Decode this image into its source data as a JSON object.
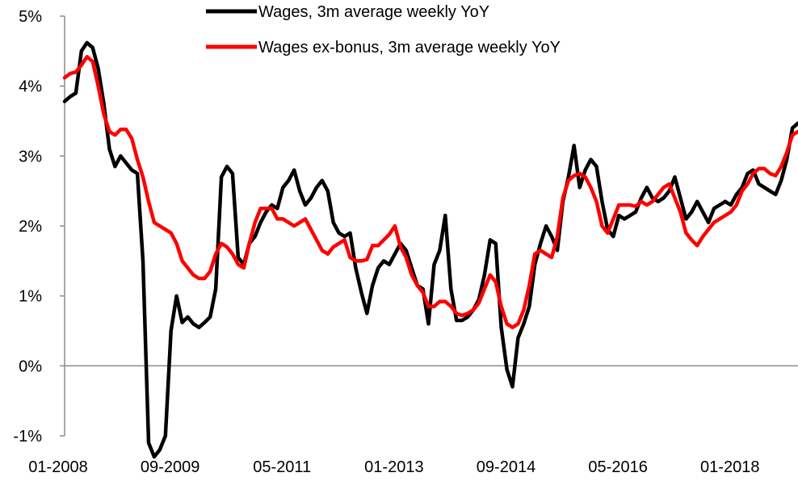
{
  "chart_data": {
    "type": "line",
    "title": "",
    "xlabel": "",
    "ylabel": "",
    "ylim": [
      -1,
      5
    ],
    "y_tick_labels": [
      "-1%",
      "0%",
      "1%",
      "2%",
      "3%",
      "4%",
      "5%"
    ],
    "y_tick_values": [
      -1,
      0,
      1,
      2,
      3,
      4,
      5
    ],
    "x_tick_labels": [
      "01-2008",
      "09-2009",
      "05-2011",
      "01-2013",
      "09-2014",
      "05-2016",
      "01-2018"
    ],
    "x_tick_dates": [
      "2008-01",
      "2009-09",
      "2011-05",
      "2013-01",
      "2014-09",
      "2016-05",
      "2018-01"
    ],
    "x_range": [
      "2008-01",
      "2018-12"
    ],
    "grid": false,
    "legend_position": "top",
    "series": [
      {
        "name": "Wages, 3m average weekly YoY",
        "color": "#000000",
        "points": [
          [
            "2008-01",
            3.78
          ],
          [
            "2008-02",
            3.85
          ],
          [
            "2008-03",
            3.9
          ],
          [
            "2008-04",
            4.5
          ],
          [
            "2008-05",
            4.62
          ],
          [
            "2008-06",
            4.55
          ],
          [
            "2008-07",
            4.25
          ],
          [
            "2008-08",
            3.75
          ],
          [
            "2008-09",
            3.1
          ],
          [
            "2008-10",
            2.85
          ],
          [
            "2008-11",
            3.0
          ],
          [
            "2008-12",
            2.9
          ],
          [
            "2009-01",
            2.8
          ],
          [
            "2009-02",
            2.75
          ],
          [
            "2009-03",
            1.5
          ],
          [
            "2009-04",
            -1.1
          ],
          [
            "2009-05",
            -1.3
          ],
          [
            "2009-06",
            -1.2
          ],
          [
            "2009-07",
            -1.0
          ],
          [
            "2009-08",
            0.5
          ],
          [
            "2009-09",
            1.0
          ],
          [
            "2009-10",
            0.62
          ],
          [
            "2009-11",
            0.7
          ],
          [
            "2009-12",
            0.6
          ],
          [
            "2010-01",
            0.55
          ],
          [
            "2010-02",
            0.62
          ],
          [
            "2010-03",
            0.7
          ],
          [
            "2010-04",
            1.1
          ],
          [
            "2010-05",
            2.7
          ],
          [
            "2010-06",
            2.85
          ],
          [
            "2010-07",
            2.75
          ],
          [
            "2010-08",
            1.55
          ],
          [
            "2010-09",
            1.45
          ],
          [
            "2010-10",
            1.75
          ],
          [
            "2010-11",
            1.85
          ],
          [
            "2010-12",
            2.05
          ],
          [
            "2011-01",
            2.2
          ],
          [
            "2011-02",
            2.3
          ],
          [
            "2011-03",
            2.25
          ],
          [
            "2011-04",
            2.55
          ],
          [
            "2011-05",
            2.65
          ],
          [
            "2011-06",
            2.8
          ],
          [
            "2011-07",
            2.5
          ],
          [
            "2011-08",
            2.3
          ],
          [
            "2011-09",
            2.4
          ],
          [
            "2011-10",
            2.55
          ],
          [
            "2011-11",
            2.65
          ],
          [
            "2011-12",
            2.5
          ],
          [
            "2012-01",
            2.05
          ],
          [
            "2012-02",
            1.9
          ],
          [
            "2012-03",
            1.85
          ],
          [
            "2012-04",
            1.9
          ],
          [
            "2012-05",
            1.4
          ],
          [
            "2012-06",
            1.05
          ],
          [
            "2012-07",
            0.75
          ],
          [
            "2012-08",
            1.15
          ],
          [
            "2012-09",
            1.4
          ],
          [
            "2012-10",
            1.5
          ],
          [
            "2012-11",
            1.45
          ],
          [
            "2012-12",
            1.6
          ],
          [
            "2013-01",
            1.75
          ],
          [
            "2013-02",
            1.65
          ],
          [
            "2013-03",
            1.4
          ],
          [
            "2013-04",
            1.15
          ],
          [
            "2013-05",
            1.1
          ],
          [
            "2013-06",
            0.6
          ],
          [
            "2013-07",
            1.45
          ],
          [
            "2013-08",
            1.65
          ],
          [
            "2013-09",
            2.15
          ],
          [
            "2013-10",
            1.1
          ],
          [
            "2013-11",
            0.65
          ],
          [
            "2013-12",
            0.65
          ],
          [
            "2014-01",
            0.7
          ],
          [
            "2014-02",
            0.8
          ],
          [
            "2014-03",
            0.95
          ],
          [
            "2014-04",
            1.3
          ],
          [
            "2014-05",
            1.8
          ],
          [
            "2014-06",
            1.75
          ],
          [
            "2014-07",
            0.55
          ],
          [
            "2014-08",
            -0.05
          ],
          [
            "2014-09",
            -0.3
          ],
          [
            "2014-10",
            0.4
          ],
          [
            "2014-11",
            0.6
          ],
          [
            "2014-12",
            0.85
          ],
          [
            "2015-01",
            1.45
          ],
          [
            "2015-02",
            1.75
          ],
          [
            "2015-03",
            2.0
          ],
          [
            "2015-04",
            1.85
          ],
          [
            "2015-05",
            1.65
          ],
          [
            "2015-06",
            2.35
          ],
          [
            "2015-07",
            2.7
          ],
          [
            "2015-08",
            3.15
          ],
          [
            "2015-09",
            2.55
          ],
          [
            "2015-10",
            2.8
          ],
          [
            "2015-11",
            2.95
          ],
          [
            "2015-12",
            2.85
          ],
          [
            "2016-01",
            2.35
          ],
          [
            "2016-02",
            1.95
          ],
          [
            "2016-03",
            1.85
          ],
          [
            "2016-04",
            2.15
          ],
          [
            "2016-05",
            2.1
          ],
          [
            "2016-06",
            2.15
          ],
          [
            "2016-07",
            2.2
          ],
          [
            "2016-08",
            2.4
          ],
          [
            "2016-09",
            2.55
          ],
          [
            "2016-10",
            2.4
          ],
          [
            "2016-11",
            2.35
          ],
          [
            "2016-12",
            2.4
          ],
          [
            "2017-01",
            2.5
          ],
          [
            "2017-02",
            2.7
          ],
          [
            "2017-03",
            2.4
          ],
          [
            "2017-04",
            2.1
          ],
          [
            "2017-05",
            2.2
          ],
          [
            "2017-06",
            2.35
          ],
          [
            "2017-07",
            2.2
          ],
          [
            "2017-08",
            2.05
          ],
          [
            "2017-09",
            2.25
          ],
          [
            "2017-10",
            2.3
          ],
          [
            "2017-11",
            2.35
          ],
          [
            "2017-12",
            2.3
          ],
          [
            "2018-01",
            2.45
          ],
          [
            "2018-02",
            2.55
          ],
          [
            "2018-03",
            2.75
          ],
          [
            "2018-04",
            2.8
          ],
          [
            "2018-05",
            2.6
          ],
          [
            "2018-06",
            2.55
          ],
          [
            "2018-07",
            2.5
          ],
          [
            "2018-08",
            2.45
          ],
          [
            "2018-09",
            2.65
          ],
          [
            "2018-10",
            2.95
          ],
          [
            "2018-11",
            3.4
          ],
          [
            "2018-12",
            3.47
          ]
        ]
      },
      {
        "name": "Wages ex-bonus, 3m average weekly YoY",
        "color": "#ff0000",
        "points": [
          [
            "2008-01",
            4.12
          ],
          [
            "2008-02",
            4.18
          ],
          [
            "2008-03",
            4.2
          ],
          [
            "2008-04",
            4.3
          ],
          [
            "2008-05",
            4.42
          ],
          [
            "2008-06",
            4.35
          ],
          [
            "2008-07",
            4.0
          ],
          [
            "2008-08",
            3.6
          ],
          [
            "2008-09",
            3.35
          ],
          [
            "2008-10",
            3.3
          ],
          [
            "2008-11",
            3.38
          ],
          [
            "2008-12",
            3.38
          ],
          [
            "2009-01",
            3.25
          ],
          [
            "2009-02",
            2.95
          ],
          [
            "2009-03",
            2.7
          ],
          [
            "2009-04",
            2.35
          ],
          [
            "2009-05",
            2.05
          ],
          [
            "2009-06",
            2.0
          ],
          [
            "2009-07",
            1.95
          ],
          [
            "2009-08",
            1.9
          ],
          [
            "2009-09",
            1.75
          ],
          [
            "2009-10",
            1.5
          ],
          [
            "2009-11",
            1.4
          ],
          [
            "2009-12",
            1.3
          ],
          [
            "2010-01",
            1.25
          ],
          [
            "2010-02",
            1.25
          ],
          [
            "2010-03",
            1.35
          ],
          [
            "2010-04",
            1.6
          ],
          [
            "2010-05",
            1.75
          ],
          [
            "2010-06",
            1.7
          ],
          [
            "2010-07",
            1.6
          ],
          [
            "2010-08",
            1.45
          ],
          [
            "2010-09",
            1.4
          ],
          [
            "2010-10",
            1.75
          ],
          [
            "2010-11",
            2.05
          ],
          [
            "2010-12",
            2.25
          ],
          [
            "2011-01",
            2.25
          ],
          [
            "2011-02",
            2.25
          ],
          [
            "2011-03",
            2.1
          ],
          [
            "2011-04",
            2.1
          ],
          [
            "2011-05",
            2.05
          ],
          [
            "2011-06",
            2.0
          ],
          [
            "2011-07",
            2.05
          ],
          [
            "2011-08",
            2.1
          ],
          [
            "2011-09",
            1.95
          ],
          [
            "2011-10",
            1.8
          ],
          [
            "2011-11",
            1.65
          ],
          [
            "2011-12",
            1.6
          ],
          [
            "2012-01",
            1.7
          ],
          [
            "2012-02",
            1.75
          ],
          [
            "2012-03",
            1.8
          ],
          [
            "2012-04",
            1.55
          ],
          [
            "2012-05",
            1.5
          ],
          [
            "2012-06",
            1.5
          ],
          [
            "2012-07",
            1.52
          ],
          [
            "2012-08",
            1.72
          ],
          [
            "2012-09",
            1.72
          ],
          [
            "2012-10",
            1.8
          ],
          [
            "2012-11",
            1.88
          ],
          [
            "2012-12",
            2.0
          ],
          [
            "2013-01",
            1.7
          ],
          [
            "2013-02",
            1.55
          ],
          [
            "2013-03",
            1.3
          ],
          [
            "2013-04",
            1.15
          ],
          [
            "2013-05",
            1.05
          ],
          [
            "2013-06",
            0.85
          ],
          [
            "2013-07",
            0.85
          ],
          [
            "2013-08",
            0.92
          ],
          [
            "2013-09",
            0.92
          ],
          [
            "2013-10",
            0.85
          ],
          [
            "2013-11",
            0.75
          ],
          [
            "2013-12",
            0.72
          ],
          [
            "2014-01",
            0.75
          ],
          [
            "2014-02",
            0.8
          ],
          [
            "2014-03",
            0.9
          ],
          [
            "2014-04",
            1.1
          ],
          [
            "2014-05",
            1.3
          ],
          [
            "2014-06",
            1.2
          ],
          [
            "2014-07",
            0.85
          ],
          [
            "2014-08",
            0.6
          ],
          [
            "2014-09",
            0.55
          ],
          [
            "2014-10",
            0.6
          ],
          [
            "2014-11",
            0.8
          ],
          [
            "2014-12",
            1.15
          ],
          [
            "2015-01",
            1.6
          ],
          [
            "2015-02",
            1.65
          ],
          [
            "2015-03",
            1.6
          ],
          [
            "2015-04",
            1.55
          ],
          [
            "2015-05",
            1.85
          ],
          [
            "2015-06",
            2.4
          ],
          [
            "2015-07",
            2.65
          ],
          [
            "2015-08",
            2.72
          ],
          [
            "2015-09",
            2.75
          ],
          [
            "2015-10",
            2.7
          ],
          [
            "2015-11",
            2.55
          ],
          [
            "2015-12",
            2.35
          ],
          [
            "2016-01",
            2.0
          ],
          [
            "2016-02",
            1.9
          ],
          [
            "2016-03",
            2.1
          ],
          [
            "2016-04",
            2.3
          ],
          [
            "2016-05",
            2.3
          ],
          [
            "2016-06",
            2.3
          ],
          [
            "2016-07",
            2.28
          ],
          [
            "2016-08",
            2.35
          ],
          [
            "2016-09",
            2.3
          ],
          [
            "2016-10",
            2.35
          ],
          [
            "2016-11",
            2.45
          ],
          [
            "2016-12",
            2.55
          ],
          [
            "2017-01",
            2.6
          ],
          [
            "2017-02",
            2.4
          ],
          [
            "2017-03",
            2.2
          ],
          [
            "2017-04",
            1.9
          ],
          [
            "2017-05",
            1.8
          ],
          [
            "2017-06",
            1.72
          ],
          [
            "2017-07",
            1.85
          ],
          [
            "2017-08",
            1.95
          ],
          [
            "2017-09",
            2.05
          ],
          [
            "2017-10",
            2.1
          ],
          [
            "2017-11",
            2.15
          ],
          [
            "2017-12",
            2.2
          ],
          [
            "2018-01",
            2.3
          ],
          [
            "2018-02",
            2.5
          ],
          [
            "2018-03",
            2.6
          ],
          [
            "2018-04",
            2.75
          ],
          [
            "2018-05",
            2.82
          ],
          [
            "2018-06",
            2.82
          ],
          [
            "2018-07",
            2.75
          ],
          [
            "2018-08",
            2.72
          ],
          [
            "2018-09",
            2.85
          ],
          [
            "2018-10",
            3.05
          ],
          [
            "2018-11",
            3.3
          ],
          [
            "2018-12",
            3.35
          ]
        ]
      }
    ]
  }
}
